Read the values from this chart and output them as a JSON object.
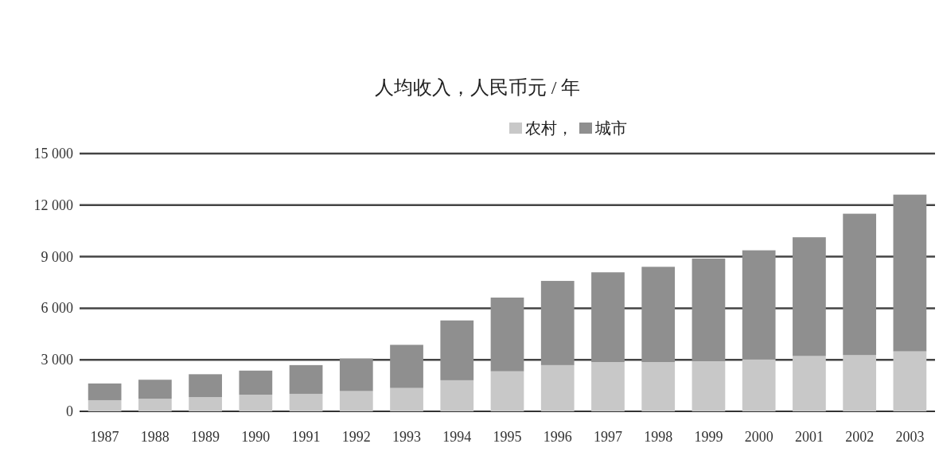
{
  "chart_data": {
    "type": "bar",
    "title": "人均收入，人民币元 / 年",
    "categories": [
      "1987",
      "1988",
      "1989",
      "1990",
      "1991",
      "1992",
      "1993",
      "1994",
      "1995",
      "1996",
      "1997",
      "1998",
      "1999",
      "2000",
      "2001",
      "2002",
      "2003"
    ],
    "stacked": true,
    "series": [
      {
        "name": "农村，",
        "color": "#c8c8c8",
        "values": [
          650,
          740,
          830,
          970,
          1020,
          1180,
          1360,
          1810,
          2330,
          2690,
          2870,
          2870,
          2920,
          3040,
          3220,
          3270,
          3490
        ]
      },
      {
        "name": "城市",
        "color": "#8f8f8f",
        "values": [
          970,
          1100,
          1330,
          1400,
          1670,
          1900,
          2510,
          3480,
          4290,
          4900,
          5220,
          5540,
          5970,
          6330,
          6910,
          8230,
          9120
        ]
      }
    ],
    "ylim": [
      0,
      15000
    ],
    "yticks": [
      {
        "value": 0,
        "label": "0"
      },
      {
        "value": 3000,
        "label": "3 000"
      },
      {
        "value": 6000,
        "label": "6 000"
      },
      {
        "value": 9000,
        "label": "9 000"
      },
      {
        "value": 12000,
        "label": "12 000"
      },
      {
        "value": 15000,
        "label": "15 000"
      }
    ],
    "grid": "y",
    "legend": "top right"
  }
}
